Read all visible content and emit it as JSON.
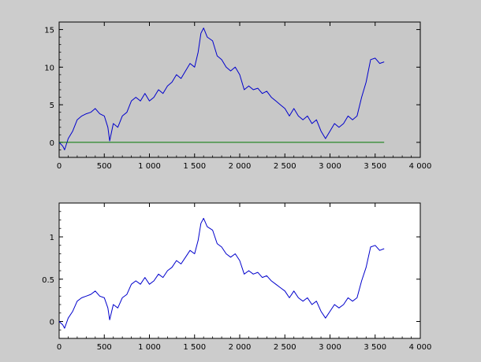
{
  "figure": {
    "background": "#cccccc"
  },
  "chart_data": [
    {
      "type": "line",
      "title": "",
      "xlabel": "",
      "ylabel": "",
      "xlim": [
        0,
        4000
      ],
      "ylim": [
        -2,
        16
      ],
      "xticks": [
        0,
        500,
        1000,
        1500,
        2000,
        2500,
        3000,
        3500,
        4000
      ],
      "xtick_labels": [
        "0",
        "500",
        "1 000",
        "1 500",
        "2 000",
        "2 500",
        "3 000",
        "3 500",
        "4 000"
      ],
      "yticks": [
        0,
        5,
        10,
        15
      ],
      "ytick_labels": [
        "0",
        "5",
        "10",
        "15"
      ],
      "plot_background": "#c8c8c8",
      "grid": false,
      "series": [
        {
          "color": "#0000cc",
          "x": [
            0,
            40,
            60,
            100,
            150,
            200,
            250,
            300,
            350,
            400,
            450,
            500,
            540,
            560,
            600,
            650,
            700,
            750,
            800,
            850,
            900,
            950,
            1000,
            1050,
            1100,
            1150,
            1200,
            1250,
            1300,
            1350,
            1400,
            1450,
            1500,
            1540,
            1570,
            1600,
            1640,
            1700,
            1750,
            1800,
            1850,
            1900,
            1950,
            2000,
            2050,
            2100,
            2150,
            2200,
            2250,
            2300,
            2350,
            2400,
            2450,
            2500,
            2550,
            2600,
            2650,
            2700,
            2750,
            2800,
            2850,
            2900,
            2950,
            3000,
            3050,
            3100,
            3150,
            3200,
            3250,
            3300,
            3350,
            3400,
            3450,
            3500,
            3550,
            3600
          ],
          "y": [
            0,
            -0.5,
            -1.0,
            0.5,
            1.5,
            3.0,
            3.5,
            3.8,
            4.0,
            4.5,
            3.8,
            3.5,
            2.0,
            0.2,
            2.5,
            2.0,
            3.5,
            4.0,
            5.5,
            6.0,
            5.5,
            6.5,
            5.5,
            6.0,
            7.0,
            6.5,
            7.5,
            8.0,
            9.0,
            8.5,
            9.5,
            10.5,
            10.0,
            12.0,
            14.5,
            15.2,
            14.0,
            13.5,
            11.5,
            11.0,
            10.0,
            9.5,
            10.0,
            9.0,
            7.0,
            7.5,
            7.0,
            7.2,
            6.5,
            6.8,
            6.0,
            5.5,
            5.0,
            4.5,
            3.5,
            4.5,
            3.5,
            3.0,
            3.5,
            2.5,
            3.0,
            1.5,
            0.5,
            1.5,
            2.5,
            2.0,
            2.5,
            3.5,
            3.0,
            3.5,
            6.0,
            8.0,
            11.0,
            11.2,
            10.5,
            10.7
          ]
        },
        {
          "color": "#007700",
          "x": [
            0,
            3600
          ],
          "y": [
            0,
            0
          ]
        }
      ]
    },
    {
      "type": "line",
      "title": "",
      "xlabel": "",
      "ylabel": "",
      "xlim": [
        0,
        4000
      ],
      "ylim": [
        -0.2,
        1.4
      ],
      "xticks": [
        0,
        500,
        1000,
        1500,
        2000,
        2500,
        3000,
        3500,
        4000
      ],
      "xtick_labels": [
        "0",
        "500",
        "1 000",
        "1 500",
        "2 000",
        "2 500",
        "3 000",
        "3 500",
        "4 000"
      ],
      "yticks": [
        0,
        0.5,
        1
      ],
      "ytick_labels": [
        "0",
        "0.5",
        "1"
      ],
      "plot_background": "#ffffff",
      "grid": false,
      "series": [
        {
          "color": "#0000cc",
          "x": [
            0,
            40,
            60,
            100,
            150,
            200,
            250,
            300,
            350,
            400,
            450,
            500,
            540,
            560,
            600,
            650,
            700,
            750,
            800,
            850,
            900,
            950,
            1000,
            1050,
            1100,
            1150,
            1200,
            1250,
            1300,
            1350,
            1400,
            1450,
            1500,
            1540,
            1570,
            1600,
            1640,
            1700,
            1750,
            1800,
            1850,
            1900,
            1950,
            2000,
            2050,
            2100,
            2150,
            2200,
            2250,
            2300,
            2350,
            2400,
            2450,
            2500,
            2550,
            2600,
            2650,
            2700,
            2750,
            2800,
            2850,
            2900,
            2950,
            3000,
            3050,
            3100,
            3150,
            3200,
            3250,
            3300,
            3350,
            3400,
            3450,
            3500,
            3550,
            3600
          ],
          "y": [
            0,
            -0.04,
            -0.08,
            0.04,
            0.12,
            0.24,
            0.28,
            0.3,
            0.32,
            0.36,
            0.3,
            0.28,
            0.16,
            0.02,
            0.2,
            0.16,
            0.28,
            0.32,
            0.44,
            0.48,
            0.44,
            0.52,
            0.44,
            0.48,
            0.56,
            0.52,
            0.6,
            0.64,
            0.72,
            0.68,
            0.76,
            0.84,
            0.8,
            0.96,
            1.16,
            1.22,
            1.12,
            1.08,
            0.92,
            0.88,
            0.8,
            0.76,
            0.8,
            0.72,
            0.56,
            0.6,
            0.56,
            0.58,
            0.52,
            0.54,
            0.48,
            0.44,
            0.4,
            0.36,
            0.28,
            0.36,
            0.28,
            0.24,
            0.28,
            0.2,
            0.24,
            0.12,
            0.04,
            0.12,
            0.2,
            0.16,
            0.2,
            0.28,
            0.24,
            0.28,
            0.48,
            0.64,
            0.88,
            0.9,
            0.84,
            0.86
          ]
        }
      ]
    }
  ]
}
